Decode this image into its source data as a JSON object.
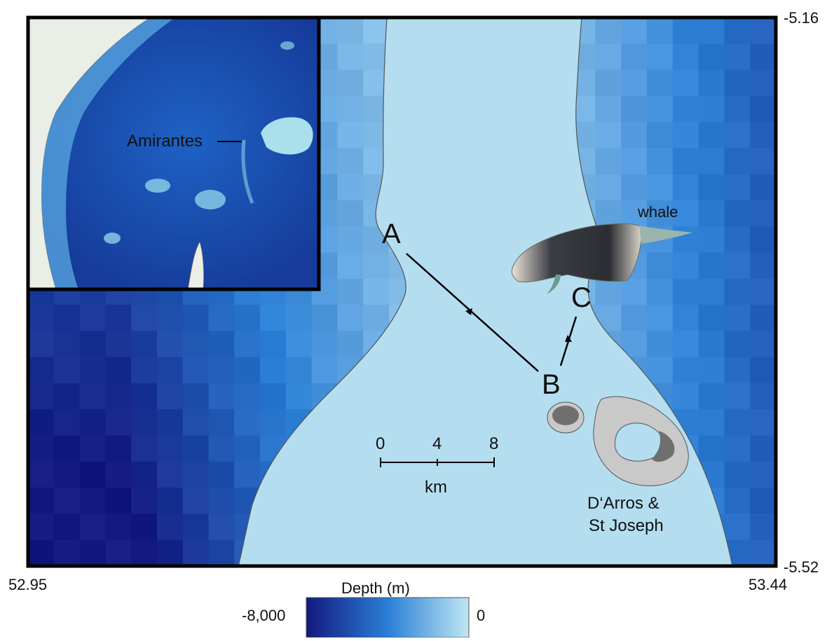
{
  "map": {
    "coords": {
      "left_lon": "52.95",
      "right_lon": "53.44",
      "top_lat": "-5.16",
      "bottom_lat": "-5.52"
    },
    "points": {
      "a": "A",
      "b": "B",
      "c": "C"
    },
    "labels": {
      "whale": "whale",
      "islands_line1": "D‘Arros &",
      "islands_line2": "St Joseph"
    },
    "scale_bar": {
      "ticks": [
        "0",
        "4",
        "8"
      ],
      "unit": "km"
    },
    "inset": {
      "label": "Amirantes"
    },
    "legend": {
      "title": "Depth (m)",
      "min": "-8,000",
      "max": "0"
    },
    "colors": {
      "deep": "#13197f",
      "mid": "#2a7fd6",
      "shallow": "#b4def0",
      "land": "#e9eee6",
      "island": "#c9c9c9",
      "frame": "#000000"
    }
  }
}
